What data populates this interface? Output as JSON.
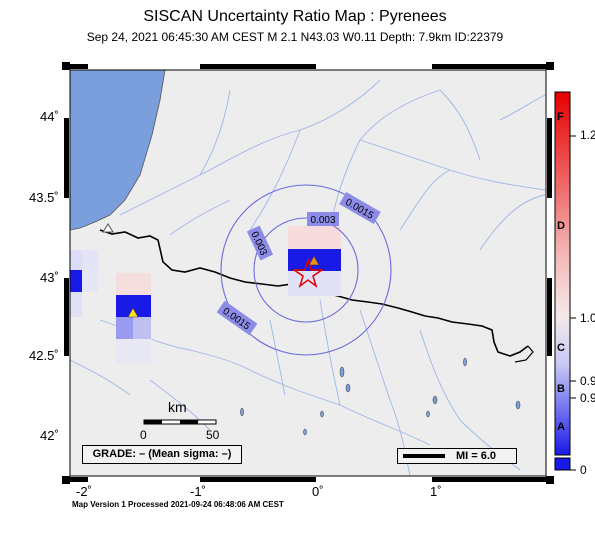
{
  "header": {
    "title": "SISCAN Uncertainty Ratio Map : Pyrenees",
    "subtitle": "Sep 24, 2021 06:45:30 AM CEST   M 2.1   N43.03 W0.11   Depth: 7.9km   ID:22379"
  },
  "map": {
    "lat_labels": [
      "44˚",
      "43.5˚",
      "43˚",
      "42.5˚",
      "42˚"
    ],
    "lon_labels": [
      "-2˚",
      "-1˚",
      "0˚",
      "1˚"
    ],
    "contour_labels": [
      "0.0015",
      "0.003",
      "0.003",
      "0.0015"
    ],
    "scale_bar": {
      "unit": "km",
      "start": "0",
      "end": "50"
    },
    "grade": "GRADE: – (Mean sigma: –)",
    "mi_legend": "MI = 6.0",
    "epicenter": {
      "lat": 43.03,
      "lon": -0.11
    },
    "colors": {
      "sea": "#7b9fdd",
      "land": "#ededed",
      "border": "#000000",
      "rivers": "#9db6e6",
      "epicenter": "#e00000"
    }
  },
  "colorbar": {
    "letters": [
      "F",
      "D",
      "C",
      "B",
      "A"
    ],
    "values": [
      "1.2",
      "1.0",
      "0.9",
      "0.9",
      "0"
    ]
  },
  "footer": "Map Version 1 Processed 2021-09-24 06:48:06 AM CEST"
}
